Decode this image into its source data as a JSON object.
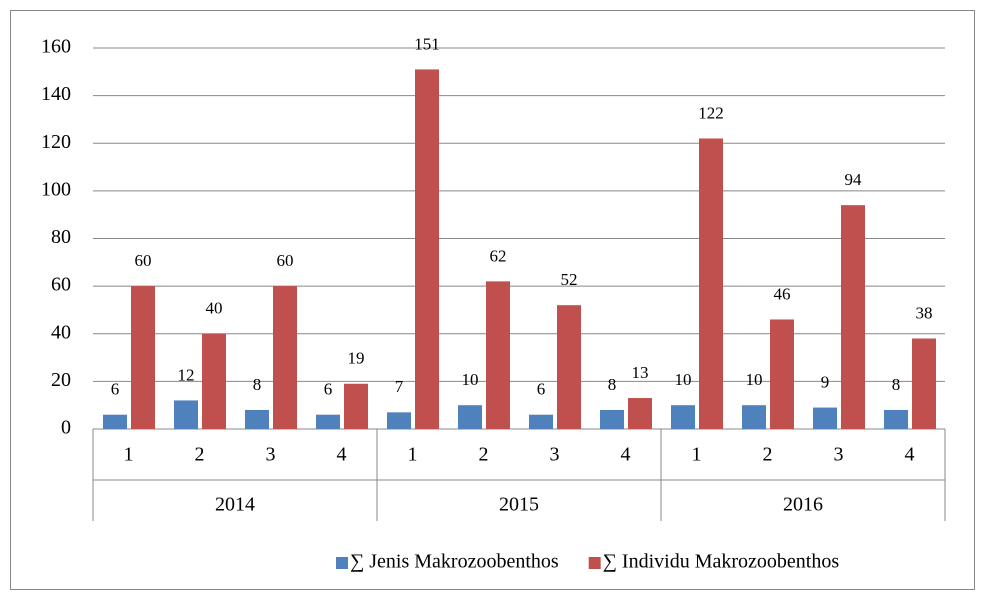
{
  "chart_data": {
    "type": "bar",
    "categories": [
      "1",
      "2",
      "3",
      "4",
      "1",
      "2",
      "3",
      "4",
      "1",
      "2",
      "3",
      "4"
    ],
    "groups": [
      "2014",
      "2015",
      "2016"
    ],
    "series": [
      {
        "name": "∑ Jenis Makrozoobenthos",
        "color": "#4f81bd",
        "values": [
          6,
          12,
          8,
          6,
          7,
          10,
          6,
          8,
          10,
          10,
          9,
          8
        ]
      },
      {
        "name": "∑ Individu Makrozoobenthos",
        "color": "#c0504d",
        "values": [
          60,
          40,
          60,
          19,
          151,
          62,
          52,
          13,
          122,
          46,
          94,
          38
        ]
      }
    ],
    "ylim": [
      0,
      160
    ],
    "yticks": [
      0,
      20,
      40,
      60,
      80,
      100,
      120,
      140,
      160
    ],
    "grid": true,
    "legend": "bottom"
  }
}
